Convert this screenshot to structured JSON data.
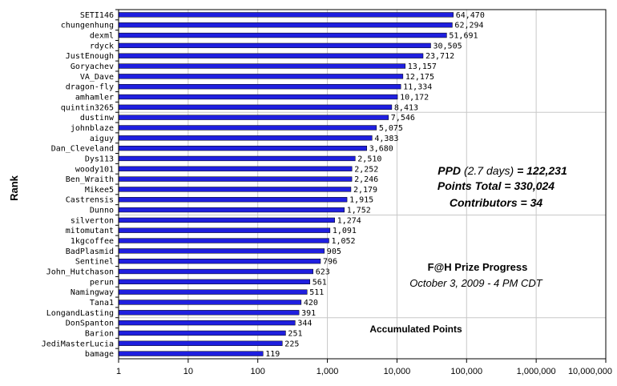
{
  "chart_data": {
    "type": "bar",
    "orientation": "horizontal",
    "x_scale": "log",
    "xlim": [
      1,
      10000000
    ],
    "grid": "vertical and horizontal major gridlines",
    "ylabel": "Rank",
    "bar_color": "#1f1fdf",
    "categories": [
      "SETI146",
      "chungenhung",
      "dexml",
      "rdyck",
      "JustEnough",
      "Goryachev",
      "VA_Dave",
      "dragon-fly",
      "amhamler",
      "quintin3265",
      "dustinw",
      "johnblaze",
      "aiguy",
      "Dan_Cleveland",
      "Dys113",
      "woody101",
      "Ben_Wraith",
      "Mikee5",
      "Castrensis",
      "Dunno",
      "silverton",
      "mitomutant",
      "1kgcoffee",
      "BadPlasmid",
      "Sentinel",
      "John_Hutchason",
      "perun",
      "Namingway",
      "Tana1",
      "LongandLasting",
      "DonSpanton",
      "Barion",
      "JediMasterLucia",
      "bamage"
    ],
    "values": [
      64470,
      62294,
      51691,
      30505,
      23712,
      13157,
      12175,
      11334,
      10172,
      8413,
      7546,
      5075,
      4383,
      3680,
      2510,
      2252,
      2246,
      2179,
      1915,
      1752,
      1274,
      1091,
      1052,
      905,
      796,
      623,
      561,
      511,
      420,
      391,
      344,
      251,
      225,
      119
    ],
    "value_labels": [
      "64,470",
      "62,294",
      "51,691",
      "30,505",
      "23,712",
      "13,157",
      "12,175",
      "11,334",
      "10,172",
      "8,413",
      "7,546",
      "5,075",
      "4,383",
      "3,680",
      "2,510",
      "2,252",
      "2,246",
      "2,179",
      "1,915",
      "1,752",
      "1,274",
      "1,091",
      "1,052",
      "905",
      "796",
      "623",
      "561",
      "511",
      "420",
      "391",
      "344",
      "251",
      "225",
      "119"
    ],
    "x_ticks": [
      1,
      10,
      100,
      1000,
      10000,
      100000,
      1000000,
      10000000
    ],
    "x_tick_labels": [
      "1",
      "10",
      "100",
      "1,000",
      "10,000",
      "100,000",
      "1,000,000",
      "10,000,000"
    ]
  },
  "annotations": {
    "ppd_prefix": "PPD",
    "ppd_days": "(2.7 days)",
    "ppd_value": "= 122,231",
    "points_total": "Points Total = 330,024",
    "contributors": "Contributors = 34",
    "prize_title": "F@H Prize Progress",
    "prize_date": "October 3, 2009 - 4 PM CDT",
    "accumulated": "Accumulated Points"
  }
}
